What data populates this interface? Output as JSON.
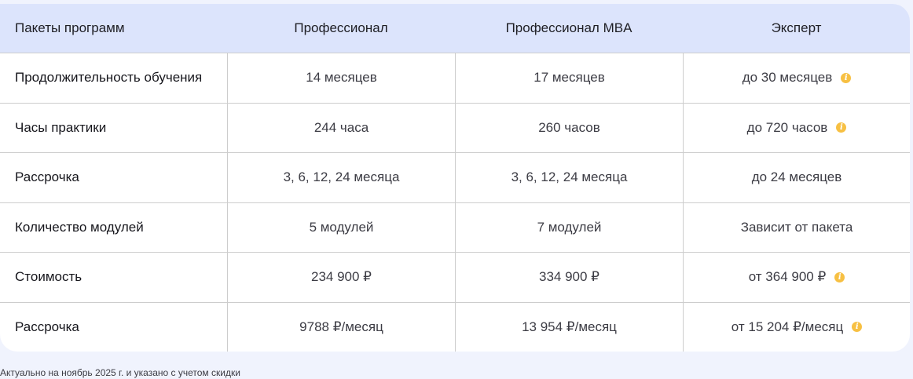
{
  "header": [
    "Пакеты программ",
    "Профессионал",
    "Профессионал MBA",
    "Эксперт"
  ],
  "rows": [
    {
      "label": "Продолжительность обучения",
      "values": [
        "14 месяцев",
        "17 месяцев",
        "до 30 месяцев"
      ],
      "info": true
    },
    {
      "label": "Часы практики",
      "values": [
        "244 часа",
        "260 часов",
        "до 720 часов"
      ],
      "info": true
    },
    {
      "label": "Рассрочка",
      "values": [
        "3, 6, 12, 24 месяца",
        "3, 6, 12, 24 месяца",
        "до 24 месяцев"
      ],
      "info": false
    },
    {
      "label": "Количество модулей",
      "values": [
        "5 модулей",
        "7 модулей",
        "Зависит от пакета"
      ],
      "info": false
    },
    {
      "label": "Стоимость",
      "values": [
        "234 900 ₽",
        "334 900 ₽",
        "от 364 900 ₽"
      ],
      "info": true
    },
    {
      "label": "Рассрочка",
      "values": [
        "9788 ₽/месяц",
        "13 954 ₽/месяц",
        "от 15 204 ₽/месяц"
      ],
      "info": true
    }
  ],
  "info_icon": {
    "name": "info-icon",
    "glyph": "i",
    "color": "#f7c043"
  },
  "footnote": "Актуально на ноябрь 2025 г. и указано с учетом скидки"
}
